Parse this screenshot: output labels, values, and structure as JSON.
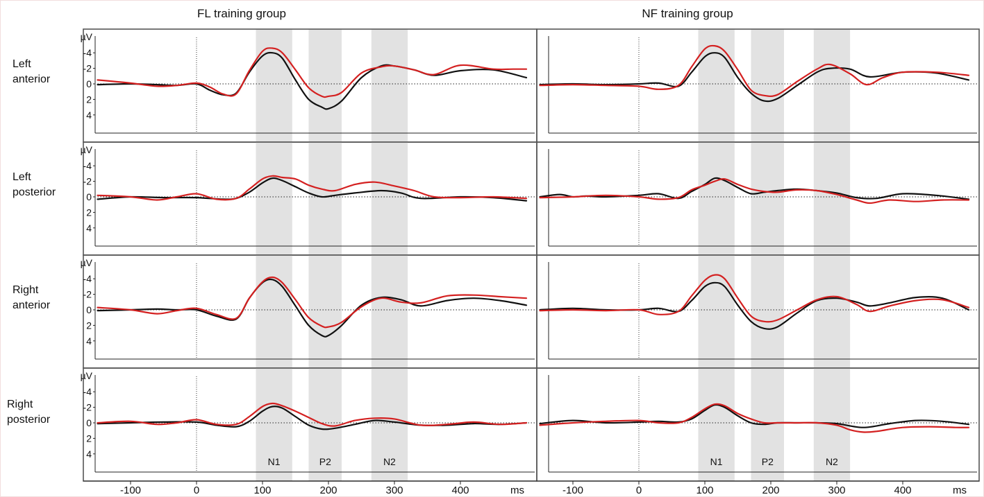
{
  "figure": {
    "unit_label": "µV",
    "ms_label": "ms",
    "colors": {
      "black_trace": "#111111",
      "red_trace": "#d42020",
      "band": "#e2e2e2"
    }
  },
  "chart_data": {
    "type": "line",
    "groups": [
      "FL training group",
      "NF training group"
    ],
    "rows": [
      "Left anterior",
      "Left posterior",
      "Right anterior",
      "Right posterior"
    ],
    "xlim": [
      -150,
      500
    ],
    "x_ticks": [
      -100,
      0,
      100,
      200,
      300,
      400
    ],
    "ylim": [
      -6.5,
      7
    ],
    "y_axis_inverted": true,
    "y_ticks": [
      -4,
      -2,
      0,
      2,
      4
    ],
    "components": [
      {
        "label": "N1",
        "start": 90,
        "end": 145
      },
      {
        "label": "P2",
        "start": 170,
        "end": 220
      },
      {
        "label": "N2",
        "start": 265,
        "end": 320
      }
    ],
    "panels": [
      {
        "group": "FL training group",
        "row": "Left anterior",
        "series": [
          {
            "color": "black",
            "x": [
              -150,
              -100,
              -60,
              -30,
              0,
              20,
              40,
              60,
              80,
              100,
              115,
              130,
              150,
              170,
              190,
              200,
              220,
              250,
              280,
              300,
              330,
              360,
              400,
              450,
              500
            ],
            "y": [
              0.1,
              0,
              0.1,
              0.2,
              0,
              0.8,
              1.4,
              1.2,
              -1.5,
              -3.6,
              -4.0,
              -3.3,
              -0.5,
              2.0,
              3.0,
              3.2,
              2.2,
              -0.8,
              -2.3,
              -2.3,
              -1.8,
              -1.1,
              -1.7,
              -1.8,
              -0.8
            ]
          },
          {
            "color": "red",
            "x": [
              -150,
              -100,
              -60,
              -30,
              0,
              20,
              40,
              60,
              80,
              100,
              115,
              130,
              150,
              170,
              190,
              200,
              220,
              250,
              280,
              300,
              330,
              360,
              400,
              450,
              480,
              500
            ],
            "y": [
              -0.5,
              -0.1,
              0.3,
              0.2,
              -0.1,
              0.4,
              1.3,
              1.3,
              -1.7,
              -4.2,
              -4.6,
              -4.0,
              -1.8,
              0.5,
              1.6,
              1.6,
              1.1,
              -1.4,
              -2.2,
              -2.3,
              -1.8,
              -1.2,
              -2.4,
              -1.9,
              -1.9,
              -1.9
            ]
          }
        ]
      },
      {
        "group": "NF training group",
        "row": "Left anterior",
        "series": [
          {
            "color": "black",
            "x": [
              -150,
              -100,
              -50,
              0,
              30,
              60,
              80,
              100,
              115,
              130,
              150,
              170,
              190,
              210,
              240,
              270,
              290,
              320,
              350,
              400,
              450,
              500
            ],
            "y": [
              0.1,
              0,
              0.1,
              0,
              -0.1,
              0.3,
              -1.5,
              -3.5,
              -4.0,
              -3.4,
              -0.8,
              1.2,
              2.2,
              1.9,
              0.2,
              -1.5,
              -2.0,
              -1.9,
              -0.9,
              -1.5,
              -1.4,
              -0.5
            ]
          },
          {
            "color": "red",
            "x": [
              -150,
              -100,
              -50,
              0,
              30,
              60,
              80,
              100,
              115,
              130,
              150,
              170,
              190,
              210,
              240,
              270,
              290,
              320,
              345,
              370,
              400,
              450,
              500
            ],
            "y": [
              0.2,
              0.1,
              0.2,
              0.3,
              0.7,
              0.2,
              -2.2,
              -4.5,
              -4.9,
              -4.2,
              -1.8,
              0.8,
              1.5,
              1.4,
              -0.3,
              -1.9,
              -2.5,
              -1.3,
              0.1,
              -0.8,
              -1.5,
              -1.5,
              -1.1
            ]
          }
        ]
      },
      {
        "group": "FL training group",
        "row": "Left posterior",
        "series": [
          {
            "color": "black",
            "x": [
              -150,
              -100,
              -50,
              0,
              40,
              60,
              80,
              100,
              115,
              130,
              150,
              170,
              190,
              210,
              240,
              280,
              310,
              340,
              400,
              450,
              500
            ],
            "y": [
              0.3,
              0,
              0.1,
              0.1,
              0.3,
              0.2,
              -0.6,
              -1.8,
              -2.4,
              -2.1,
              -1.3,
              -0.5,
              0,
              -0.2,
              -0.5,
              -0.8,
              -0.5,
              0.2,
              0,
              0.1,
              0.5
            ]
          },
          {
            "color": "red",
            "x": [
              -150,
              -100,
              -60,
              -30,
              0,
              30,
              60,
              80,
              100,
              115,
              130,
              150,
              170,
              190,
              210,
              240,
              270,
              300,
              330,
              360,
              400,
              450,
              500
            ],
            "y": [
              -0.2,
              0,
              0.4,
              0,
              -0.4,
              0.3,
              0.2,
              -1.0,
              -2.3,
              -2.7,
              -2.5,
              -2.3,
              -1.5,
              -1.0,
              -0.8,
              -1.6,
              -1.9,
              -1.4,
              -0.8,
              0,
              0.1,
              0,
              0.2
            ]
          }
        ]
      },
      {
        "group": "NF training group",
        "row": "Left posterior",
        "series": [
          {
            "color": "black",
            "x": [
              -150,
              -120,
              -100,
              -80,
              -50,
              0,
              30,
              60,
              80,
              100,
              115,
              130,
              150,
              170,
              190,
              210,
              240,
              270,
              300,
              330,
              360,
              400,
              450,
              500
            ],
            "y": [
              0,
              -0.3,
              0,
              -0.1,
              0,
              -0.2,
              -0.4,
              0.2,
              -0.7,
              -1.6,
              -2.4,
              -2.1,
              -1.2,
              -0.4,
              -0.6,
              -0.8,
              -1.0,
              -0.8,
              -0.5,
              0.1,
              0.2,
              -0.4,
              -0.2,
              0.3
            ]
          },
          {
            "color": "red",
            "x": [
              -150,
              -100,
              -50,
              0,
              30,
              60,
              80,
              100,
              115,
              130,
              150,
              170,
              190,
              210,
              240,
              270,
              300,
              330,
              350,
              380,
              420,
              460,
              500
            ],
            "y": [
              0.1,
              0,
              -0.2,
              0,
              0.3,
              0.1,
              -0.9,
              -1.5,
              -2.0,
              -2.3,
              -1.6,
              -1.0,
              -0.7,
              -0.6,
              -0.9,
              -0.8,
              -0.3,
              0.4,
              0.8,
              0.4,
              0.6,
              0.4,
              0.4
            ]
          }
        ]
      },
      {
        "group": "FL training group",
        "row": "Right anterior",
        "series": [
          {
            "color": "black",
            "x": [
              -150,
              -100,
              -60,
              -30,
              0,
              30,
              60,
              80,
              100,
              115,
              130,
              150,
              170,
              190,
              200,
              220,
              250,
              280,
              310,
              340,
              380,
              420,
              460,
              500
            ],
            "y": [
              0.1,
              0,
              -0.1,
              0,
              0,
              0.8,
              1.2,
              -1.5,
              -3.5,
              -3.9,
              -3.0,
              -0.5,
              2.0,
              3.3,
              3.3,
              2.0,
              -0.6,
              -1.6,
              -1.3,
              -0.5,
              -1.2,
              -1.5,
              -1.2,
              -0.6
            ]
          },
          {
            "color": "red",
            "x": [
              -150,
              -100,
              -60,
              -30,
              0,
              30,
              60,
              80,
              100,
              115,
              130,
              150,
              170,
              190,
              200,
              220,
              250,
              280,
              310,
              340,
              380,
              420,
              460,
              500
            ],
            "y": [
              -0.3,
              0,
              0.5,
              0.1,
              -0.2,
              0.6,
              1.1,
              -1.5,
              -3.6,
              -4.2,
              -3.5,
              -1.3,
              1.0,
              2.1,
              2.2,
              1.6,
              -0.4,
              -1.5,
              -1.0,
              -0.9,
              -1.8,
              -1.9,
              -1.7,
              -1.5
            ]
          }
        ]
      },
      {
        "group": "NF training group",
        "row": "Right anterior",
        "series": [
          {
            "color": "black",
            "x": [
              -150,
              -100,
              -50,
              0,
              30,
              60,
              80,
              100,
              115,
              130,
              150,
              170,
              190,
              210,
              240,
              270,
              300,
              330,
              350,
              380,
              420,
              460,
              500
            ],
            "y": [
              0,
              -0.2,
              0,
              0,
              -0.2,
              0.2,
              -1.2,
              -3.0,
              -3.5,
              -3.0,
              -0.6,
              1.5,
              2.4,
              2.2,
              0.4,
              -1.2,
              -1.5,
              -1.0,
              -0.5,
              -0.9,
              -1.6,
              -1.5,
              0
            ]
          },
          {
            "color": "red",
            "x": [
              -150,
              -100,
              -50,
              0,
              30,
              60,
              80,
              100,
              115,
              130,
              150,
              170,
              190,
              210,
              240,
              270,
              300,
              330,
              350,
              380,
              420,
              460,
              500
            ],
            "y": [
              0.1,
              0,
              0.1,
              0,
              0.6,
              0.2,
              -1.8,
              -3.8,
              -4.5,
              -4.0,
              -1.5,
              0.8,
              1.5,
              1.3,
              0,
              -1.3,
              -1.7,
              -0.7,
              0.2,
              -0.5,
              -1.2,
              -1.3,
              -0.3
            ]
          }
        ]
      },
      {
        "group": "FL training group",
        "row": "Right posterior",
        "series": [
          {
            "color": "black",
            "x": [
              -150,
              -100,
              -50,
              0,
              30,
              60,
              80,
              100,
              115,
              130,
              150,
              170,
              190,
              210,
              240,
              270,
              300,
              340,
              380,
              420,
              460,
              500
            ],
            "y": [
              0.1,
              0,
              -0.1,
              -0.1,
              0.3,
              0.5,
              -0.2,
              -1.5,
              -2.1,
              -1.9,
              -0.8,
              0.3,
              0.8,
              0.7,
              0.2,
              -0.3,
              -0.1,
              0.3,
              0.3,
              0.1,
              0.2,
              0
            ]
          },
          {
            "color": "red",
            "x": [
              -150,
              -100,
              -60,
              -30,
              0,
              30,
              60,
              80,
              100,
              115,
              130,
              150,
              170,
              190,
              210,
              240,
              270,
              300,
              340,
              380,
              420,
              460,
              500
            ],
            "y": [
              0,
              -0.2,
              0.2,
              0,
              -0.4,
              0.2,
              0.2,
              -0.8,
              -2.1,
              -2.5,
              -2.2,
              -1.5,
              -0.7,
              0.1,
              0.4,
              -0.3,
              -0.6,
              -0.5,
              0.3,
              0.2,
              -0.1,
              0.2,
              0
            ]
          }
        ]
      },
      {
        "group": "NF training group",
        "row": "Right posterior",
        "series": [
          {
            "color": "black",
            "x": [
              -150,
              -100,
              -50,
              0,
              30,
              60,
              80,
              100,
              115,
              130,
              150,
              170,
              190,
              210,
              240,
              270,
              300,
              340,
              380,
              420,
              460,
              500
            ],
            "y": [
              0.1,
              -0.3,
              0,
              -0.1,
              -0.2,
              -0.1,
              -0.5,
              -1.6,
              -2.3,
              -2.0,
              -0.9,
              0,
              0.2,
              0,
              0,
              0,
              0.1,
              0.6,
              0.1,
              -0.3,
              -0.2,
              0.2
            ]
          },
          {
            "color": "red",
            "x": [
              -150,
              -100,
              -50,
              0,
              30,
              60,
              80,
              100,
              115,
              130,
              150,
              170,
              190,
              210,
              240,
              270,
              300,
              320,
              340,
              360,
              400,
              440,
              480,
              500
            ],
            "y": [
              0.3,
              0,
              -0.2,
              -0.3,
              0,
              0,
              -0.7,
              -1.8,
              -2.4,
              -2.2,
              -1.2,
              -0.5,
              0,
              0,
              0,
              0,
              0.3,
              0.9,
              1.2,
              1.1,
              0.6,
              0.5,
              0.6,
              0.6
            ]
          }
        ]
      }
    ]
  }
}
